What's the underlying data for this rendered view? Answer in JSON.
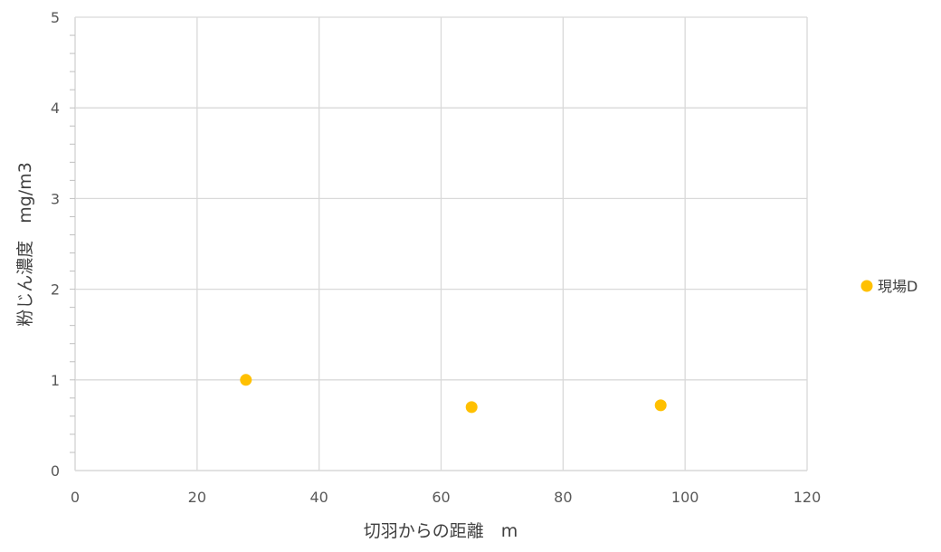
{
  "chart_data": {
    "type": "scatter",
    "xlabel": "切羽からの距離　m",
    "ylabel": "粉じん濃度　mg/m3",
    "xlim": [
      0,
      120
    ],
    "ylim": [
      0,
      5
    ],
    "x_ticks": [
      "0",
      "20",
      "40",
      "60",
      "80",
      "100",
      "120"
    ],
    "y_ticks": [
      "0",
      "1",
      "2",
      "3",
      "4",
      "5"
    ],
    "grid": true,
    "legend_position": "right",
    "series": [
      {
        "name": "現場D",
        "color": "#FFC000",
        "points": [
          {
            "x": 28,
            "y": 1.0
          },
          {
            "x": 65,
            "y": 0.7
          },
          {
            "x": 96,
            "y": 0.72
          }
        ]
      }
    ]
  }
}
